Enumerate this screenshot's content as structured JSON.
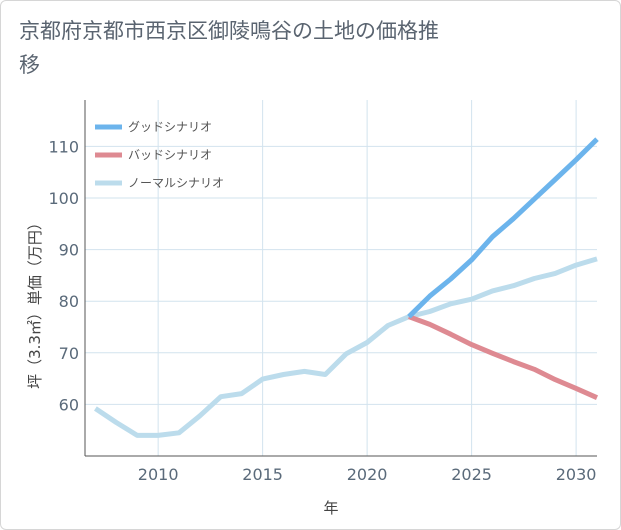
{
  "chart_data": {
    "type": "line",
    "title": "京都府京都市西京区御陵鳴谷の土地の価格推移",
    "xlabel": "年",
    "ylabel": "坪（3.3㎡）単価（万円）",
    "xlim": [
      2006.5,
      2031
    ],
    "ylim": [
      50,
      119
    ],
    "x_ticks": [
      2010,
      2015,
      2020,
      2025,
      2030
    ],
    "y_ticks": [
      60,
      70,
      80,
      90,
      100,
      110
    ],
    "grid": true,
    "legend_position": "top-left",
    "series": [
      {
        "name": "グッドシナリオ",
        "color": "#6cb4ec",
        "x": [
          2022,
          2023,
          2024,
          2025,
          2026,
          2027,
          2028,
          2029,
          2030,
          2031
        ],
        "y": [
          77.0,
          81.0,
          84.3,
          88.0,
          92.5,
          96.0,
          99.8,
          103.6,
          107.4,
          111.4
        ]
      },
      {
        "name": "バッドシナリオ",
        "color": "#de8a92",
        "x": [
          2022,
          2023,
          2024,
          2025,
          2026,
          2027,
          2028,
          2029,
          2030,
          2031
        ],
        "y": [
          77.0,
          75.5,
          73.6,
          71.6,
          69.9,
          68.3,
          66.8,
          64.8,
          63.1,
          61.3
        ]
      },
      {
        "name": "ノーマルシナリオ",
        "color": "#bcdcec",
        "x": [
          2007,
          2008,
          2009,
          2010,
          2011,
          2012,
          2013,
          2014,
          2015,
          2016,
          2017,
          2018,
          2019,
          2020,
          2021,
          2022,
          2023,
          2024,
          2025,
          2026,
          2027,
          2028,
          2029,
          2030,
          2031
        ],
        "y": [
          59.2,
          56.5,
          54.0,
          54.0,
          54.5,
          57.8,
          61.5,
          62.1,
          64.9,
          65.8,
          66.4,
          65.8,
          69.8,
          72.0,
          75.3,
          77.0,
          78.0,
          79.5,
          80.4,
          82.0,
          83.0,
          84.4,
          85.4,
          87.0,
          88.2
        ]
      }
    ]
  }
}
